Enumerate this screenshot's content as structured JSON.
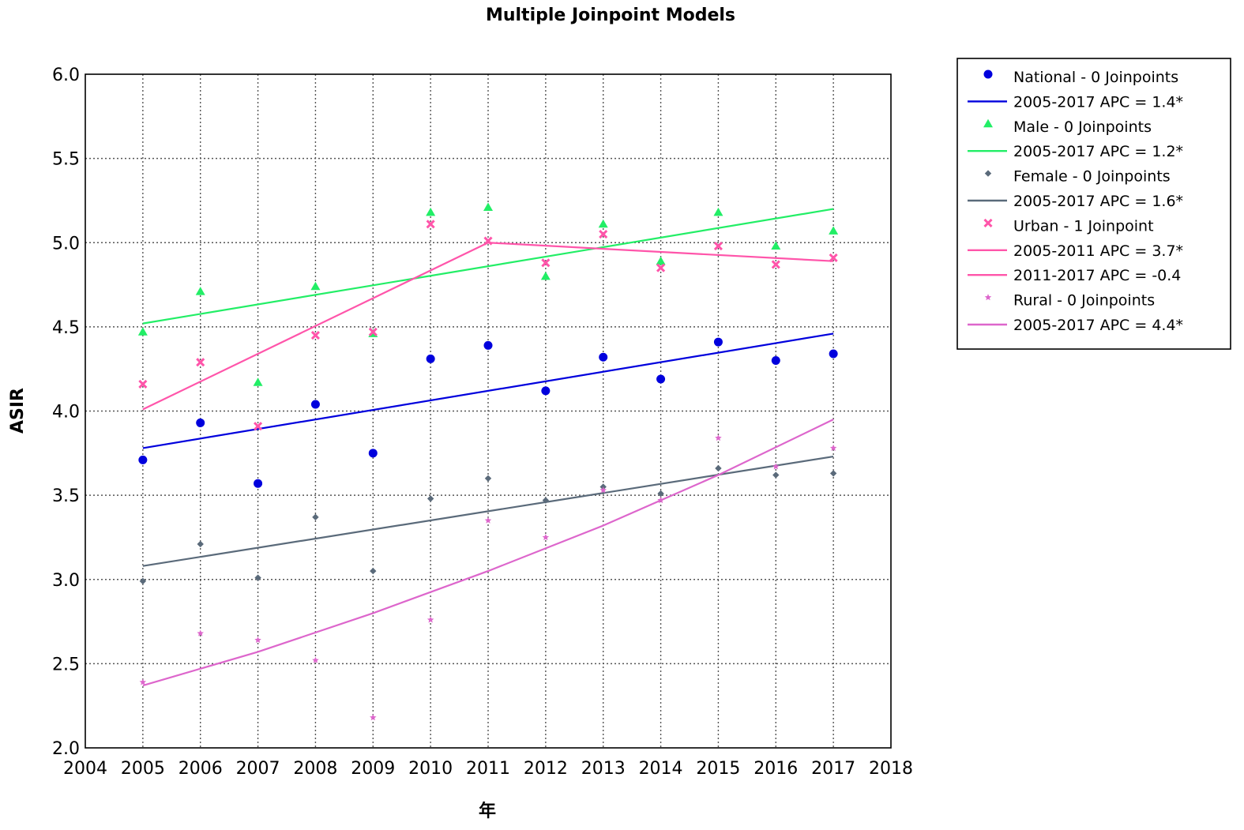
{
  "chart_data": {
    "type": "scatter",
    "title": "Multiple Joinpoint Models",
    "xlabel": "年",
    "ylabel": "ASIR",
    "xlim": [
      2004,
      2018
    ],
    "ylim": [
      2.0,
      6.0
    ],
    "x_ticks": [
      "2004",
      "2005",
      "2006",
      "2007",
      "2008",
      "2009",
      "2010",
      "2011",
      "2012",
      "2013",
      "2014",
      "2015",
      "2016",
      "2017",
      "2018"
    ],
    "y_ticks": [
      "2.0",
      "2.5",
      "3.0",
      "3.5",
      "4.0",
      "4.5",
      "5.0",
      "5.5",
      "6.0"
    ],
    "grid": true,
    "legend_position": "right",
    "x": [
      2005,
      2006,
      2007,
      2008,
      2009,
      2010,
      2011,
      2012,
      2013,
      2014,
      2015,
      2016,
      2017
    ],
    "series": [
      {
        "name": "National - 0 Joinpoints",
        "marker": "circle",
        "color": "#0000dd",
        "values": [
          3.71,
          3.93,
          3.57,
          4.04,
          3.75,
          4.31,
          4.39,
          4.12,
          4.32,
          4.19,
          4.41,
          4.3,
          4.34
        ]
      },
      {
        "name": "Male - 0 Joinpoints",
        "marker": "triangle",
        "color": "#22ee66",
        "values": [
          4.47,
          4.71,
          4.17,
          4.74,
          4.46,
          5.18,
          5.21,
          4.8,
          5.11,
          4.89,
          5.18,
          4.98,
          5.07
        ]
      },
      {
        "name": "Female - 0 Joinpoints",
        "marker": "plus",
        "color": "#5a6a7a",
        "values": [
          2.99,
          3.21,
          3.01,
          3.37,
          3.05,
          3.48,
          3.6,
          3.47,
          3.55,
          3.51,
          3.66,
          3.62,
          3.63
        ]
      },
      {
        "name": "Urban - 1 Joinpoint",
        "marker": "x",
        "color": "#ff55aa",
        "values": [
          4.16,
          4.29,
          3.91,
          4.45,
          4.47,
          5.11,
          5.01,
          4.88,
          5.05,
          4.85,
          4.98,
          4.87,
          4.91
        ]
      },
      {
        "name": "Rural - 0 Joinpoints",
        "marker": "star",
        "color": "#dd66cc",
        "values": [
          2.39,
          2.68,
          2.64,
          2.52,
          2.18,
          2.76,
          3.35,
          3.25,
          3.53,
          3.47,
          3.84,
          3.67,
          3.78
        ]
      }
    ],
    "fit_lines": [
      {
        "name": "2005-2017 APC  = 1.4*",
        "color": "#0000dd",
        "x": [
          2005,
          2017
        ],
        "y": [
          3.78,
          4.46
        ]
      },
      {
        "name": "2005-2017 APC  = 1.2*",
        "color": "#22ee66",
        "x": [
          2005,
          2017
        ],
        "y": [
          4.52,
          5.2
        ]
      },
      {
        "name": "2005-2017 APC  = 1.6*",
        "color": "#5a6a7a",
        "x": [
          2005,
          2017
        ],
        "y": [
          3.08,
          3.73
        ]
      },
      {
        "name": "2005-2011 APC  =  3.7*",
        "color": "#ff55aa",
        "x": [
          2005,
          2011
        ],
        "y": [
          4.01,
          5.0
        ]
      },
      {
        "name": "2011-2017 APC  = -0.4",
        "color": "#ff55aa",
        "x": [
          2011,
          2017
        ],
        "y": [
          5.0,
          4.89
        ]
      },
      {
        "name": "2005-2017 APC  = 4.4*",
        "color": "#dd66cc",
        "x": [
          2005,
          2007,
          2009,
          2011,
          2013,
          2015,
          2017
        ],
        "y": [
          2.37,
          2.57,
          2.8,
          3.05,
          3.32,
          3.62,
          3.95
        ]
      }
    ],
    "legend": [
      {
        "label": "National - 0 Joinpoints",
        "kind": "marker",
        "marker": "circle",
        "color": "#0000dd"
      },
      {
        "label": "2005-2017 APC  = 1.4*",
        "kind": "line",
        "color": "#0000dd"
      },
      {
        "label": "Male - 0 Joinpoints",
        "kind": "marker",
        "marker": "triangle",
        "color": "#22ee66"
      },
      {
        "label": "2005-2017 APC  = 1.2*",
        "kind": "line",
        "color": "#22ee66"
      },
      {
        "label": "Female - 0 Joinpoints",
        "kind": "marker",
        "marker": "plus",
        "color": "#5a6a7a"
      },
      {
        "label": "2005-2017 APC  = 1.6*",
        "kind": "line",
        "color": "#5a6a7a"
      },
      {
        "label": "Urban - 1 Joinpoint",
        "kind": "marker",
        "marker": "x",
        "color": "#ff55aa"
      },
      {
        "label": "2005-2011 APC  =  3.7*",
        "kind": "line",
        "color": "#ff55aa"
      },
      {
        "label": "2011-2017 APC  = -0.4",
        "kind": "line",
        "color": "#ff55aa"
      },
      {
        "label": "Rural - 0 Joinpoints",
        "kind": "marker",
        "marker": "star",
        "color": "#dd66cc"
      },
      {
        "label": "2005-2017 APC  = 4.4*",
        "kind": "line",
        "color": "#dd66cc"
      }
    ]
  }
}
